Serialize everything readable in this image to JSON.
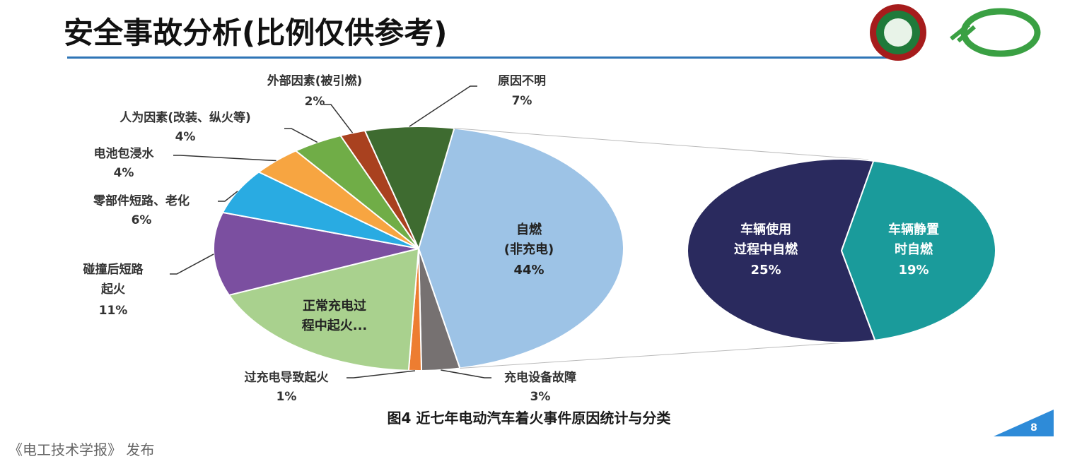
{
  "header": {
    "title": "安全事故分析(比例仅供参考)"
  },
  "chart_data": {
    "type": "pie-of-pie",
    "caption": "图4 近七年电动汽车着火事件原因统计与分类",
    "categories": [
      "自燃\n(非充电)",
      "充电设备故障",
      "过充电导致起火",
      "正常充电过\n程中起火...",
      "碰撞后短路\n起火",
      "零部件短路、老化",
      "电池包浸水",
      "人为因素(改装、纵火等)",
      "外部因素(被引燃)",
      "原因不明"
    ],
    "values": [
      44,
      3,
      1,
      18,
      11,
      6,
      4,
      4,
      2,
      7
    ],
    "value_labels": [
      "44%",
      "3%",
      "1%",
      null,
      "11%",
      "6%",
      "4%",
      "4%",
      "2%",
      "7%"
    ],
    "colors": [
      "#9dc3e6",
      "#767171",
      "#ed7d31",
      "#a9d18e",
      "#7b4fa0",
      "#29abe2",
      "#f7a541",
      "#70ad47",
      "#a9411f",
      "#3e6b30"
    ],
    "breakdown": {
      "categories": [
        "车辆使用\n过程中自燃",
        "车辆静置\n时自燃"
      ],
      "values": [
        25,
        19
      ],
      "value_labels": [
        "25%",
        "19%"
      ],
      "colors": [
        "#2a2a5e",
        "#1a9b9b"
      ]
    }
  },
  "footer": {
    "page_number": "8",
    "source": "《电工技术学报》 发布"
  }
}
